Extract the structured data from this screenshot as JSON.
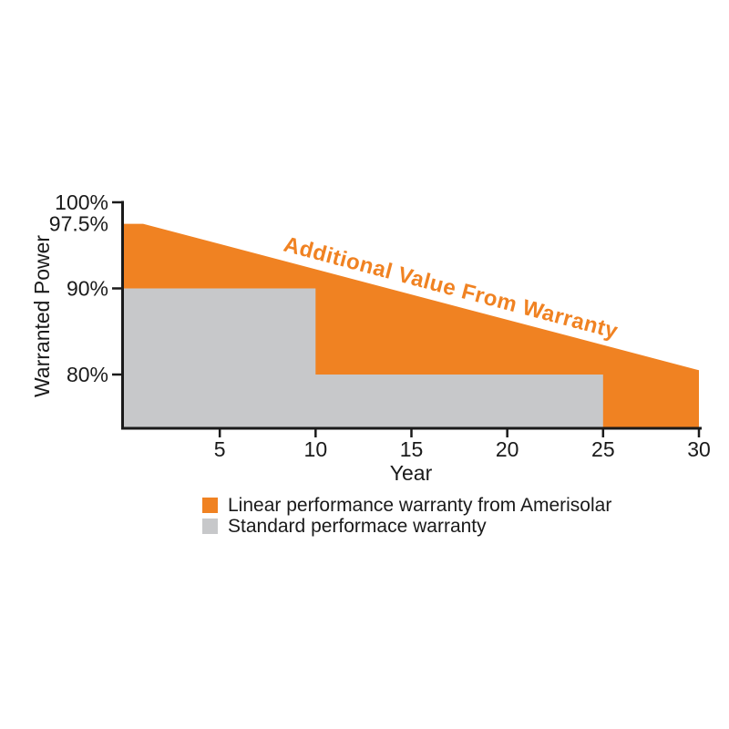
{
  "chart_data": {
    "type": "area",
    "title": "",
    "xlabel": "Year",
    "ylabel": "Warranted Power",
    "annotation": "Additional Value From Warranty",
    "xlim": [
      0,
      30
    ],
    "ylim": [
      73.8,
      100
    ],
    "x_ticks": [
      5,
      10,
      15,
      20,
      25,
      30
    ],
    "y_ticks": [
      {
        "value": 100,
        "label": "100%",
        "tick": true
      },
      {
        "value": 97.5,
        "label": "97.5%",
        "tick": false
      },
      {
        "value": 90,
        "label": "90%",
        "tick": true
      },
      {
        "value": 80,
        "label": "80%",
        "tick": true
      }
    ],
    "series": [
      {
        "name": "Linear performance warranty from Amerisolar",
        "color": "#F08222",
        "points": [
          [
            0,
            97.5
          ],
          [
            1,
            97.5
          ],
          [
            30,
            80.5
          ]
        ]
      },
      {
        "name": "Standard performace warranty",
        "color": "#C7C8CA",
        "points": [
          [
            0,
            90
          ],
          [
            10,
            90
          ],
          [
            10,
            80
          ],
          [
            25,
            80
          ]
        ]
      }
    ],
    "legend": [
      {
        "label": "Linear performance warranty from Amerisolar",
        "color": "#F08222"
      },
      {
        "label": "Standard performace warranty",
        "color": "#C7C8CA"
      }
    ],
    "colors": {
      "axis": "#1a1a1a",
      "annotation": "#F08222",
      "background": "#ffffff"
    }
  }
}
